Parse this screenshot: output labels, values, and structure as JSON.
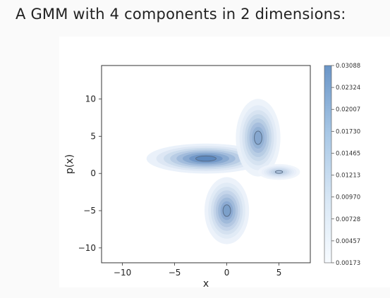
{
  "heading": "A GMM with 4 components in 2 dimensions:",
  "chart_data": {
    "type": "contour",
    "xlabel": "x",
    "ylabel": "p(x)",
    "xlim": [
      -12,
      8
    ],
    "ylim": [
      -12,
      14.5
    ],
    "x_ticks": [
      "−10",
      "−5",
      "0",
      "5"
    ],
    "x_tick_values": [
      -10,
      -5,
      0,
      5
    ],
    "y_ticks": [
      "10",
      "5",
      "0",
      "−5",
      "−10"
    ],
    "y_tick_values": [
      10,
      5,
      0,
      -5,
      -10
    ],
    "colorbar": {
      "colormap": "Blues",
      "levels": [
        "0.03088",
        "0.02324",
        "0.02007",
        "0.01730",
        "0.01465",
        "0.01213",
        "0.00970",
        "0.00728",
        "0.00457",
        "0.00173"
      ]
    },
    "components": [
      {
        "mean": [
          -2,
          2
        ],
        "sx": 2.4,
        "sy": 0.85,
        "peak": 0.0309
      },
      {
        "mean": [
          3,
          4.8
        ],
        "sx": 0.9,
        "sy": 2.2,
        "peak": 0.0225
      },
      {
        "mean": [
          0,
          -5
        ],
        "sx": 0.9,
        "sy": 1.9,
        "peak": 0.0245
      },
      {
        "mean": [
          5,
          0.2
        ],
        "sx": 0.85,
        "sy": 0.45,
        "peak": 0.0125
      }
    ],
    "colors": {
      "low": "#f7fbff",
      "high": "#4a7ab5",
      "outline": "#5a6f8a",
      "frame": "#333333"
    }
  }
}
